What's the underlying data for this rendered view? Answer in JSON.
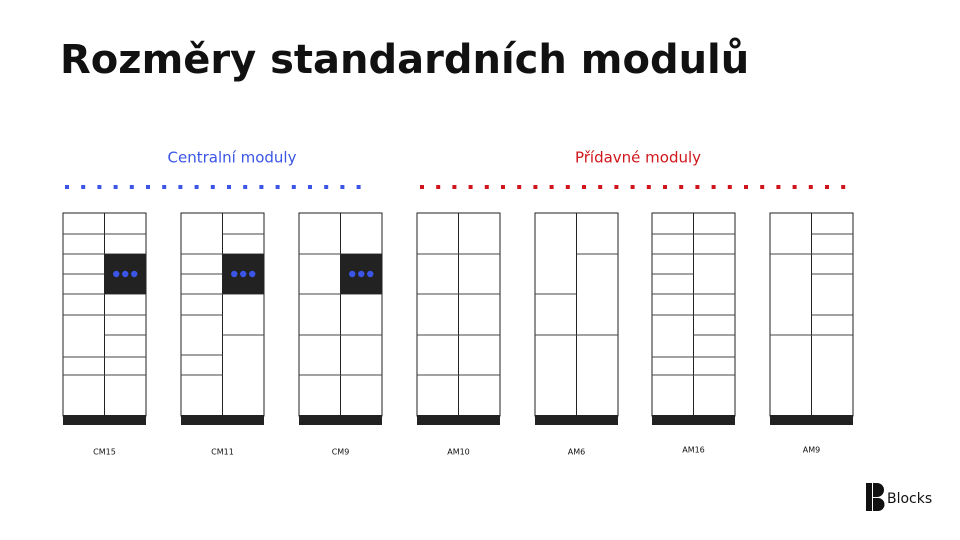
{
  "title": "Rozměry standardních modulů",
  "groups": [
    {
      "label": "Centralní moduly"
    },
    {
      "label": "Přídavné moduly"
    }
  ],
  "modules": [
    {
      "label": "CM15"
    },
    {
      "label": "CM11"
    },
    {
      "label": "CM9"
    },
    {
      "label": "AM10"
    },
    {
      "label": "AM6"
    },
    {
      "label": "AM16"
    },
    {
      "label": "AM9"
    }
  ],
  "logo": {
    "text": "Blocks"
  }
}
